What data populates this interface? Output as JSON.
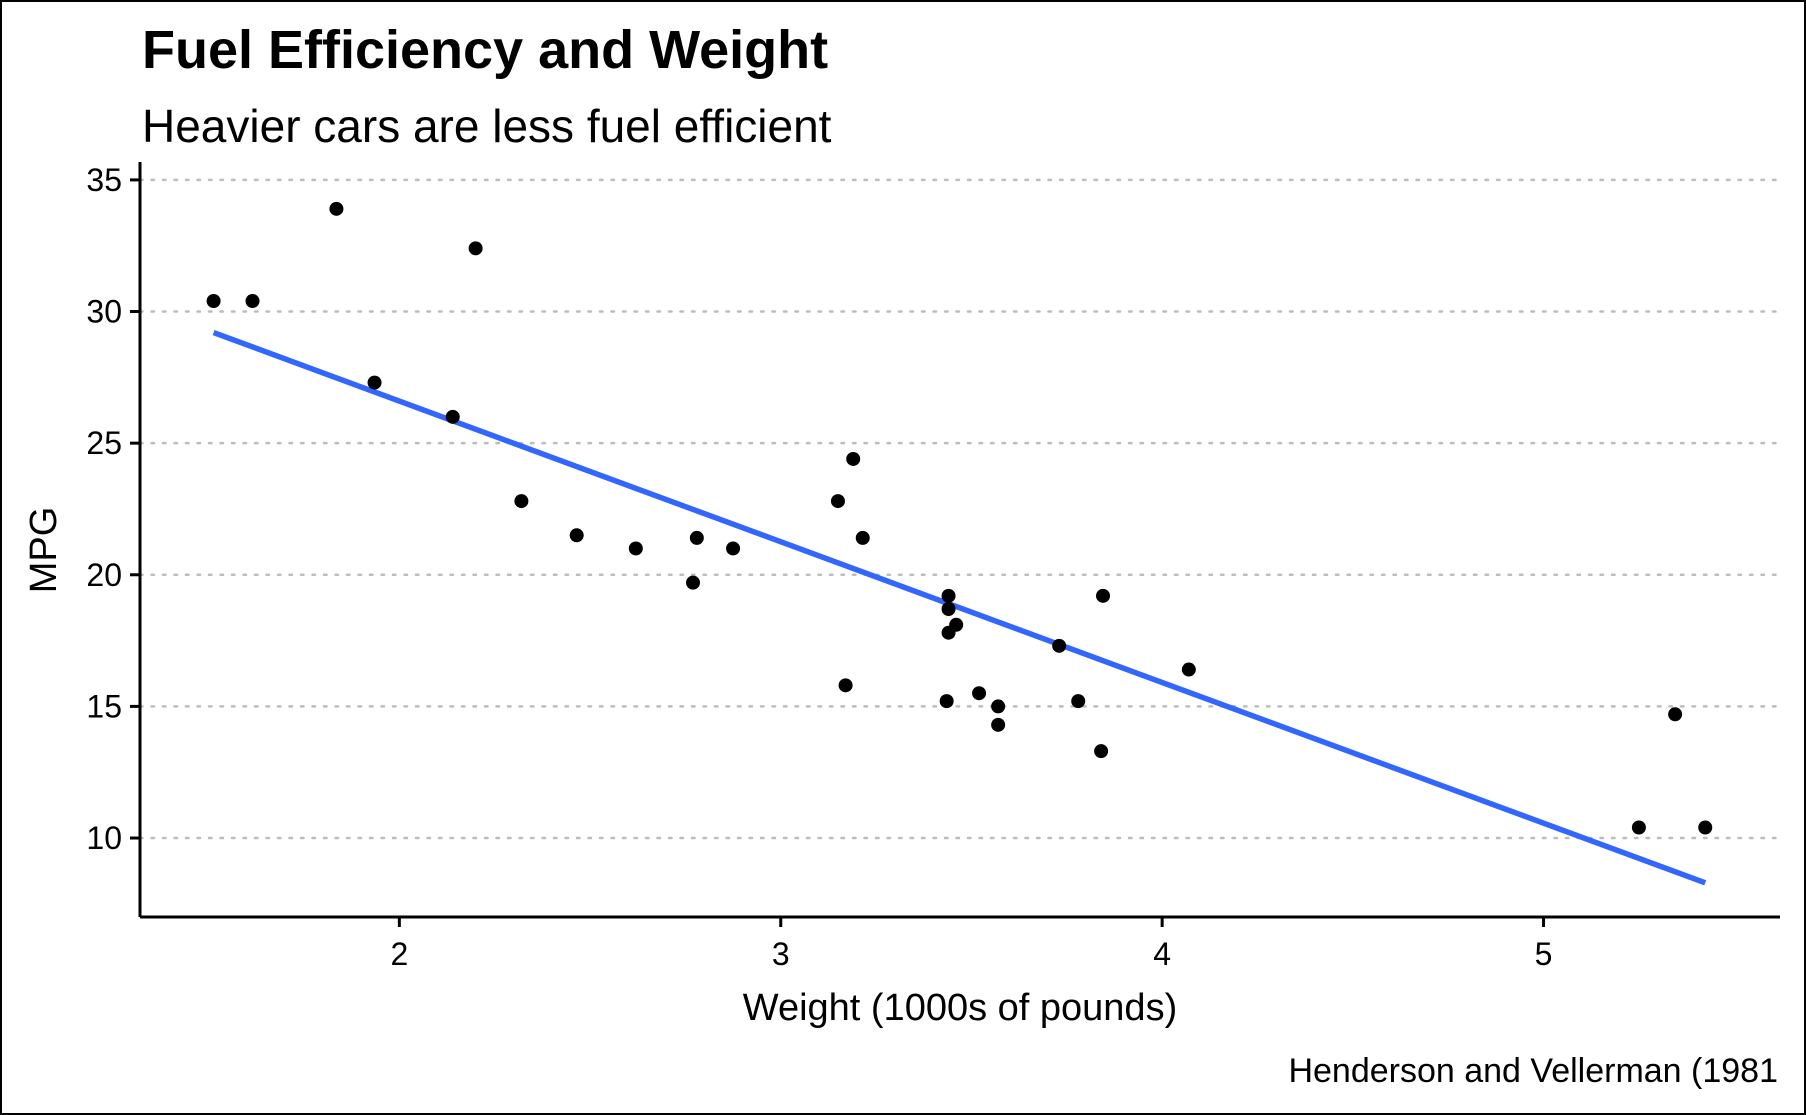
{
  "chart_data": {
    "type": "scatter",
    "title": "Fuel Efficiency and Weight",
    "subtitle": "Heavier cars are less fuel efficient",
    "caption": "Henderson and Vellerman (1981",
    "xlabel": "Weight (1000s of pounds)",
    "ylabel": "MPG",
    "xlim": [
      1.32,
      5.62
    ],
    "ylim": [
      7.0,
      35.3
    ],
    "x_ticks": [
      2,
      3,
      4,
      5
    ],
    "y_ticks": [
      10,
      15,
      20,
      25,
      30,
      35
    ],
    "grid": "horizontal dotted",
    "legend": "none",
    "series": [
      {
        "points": [
          {
            "x": 1.513,
            "y": 30.4
          },
          {
            "x": 1.615,
            "y": 30.4
          },
          {
            "x": 1.835,
            "y": 33.9
          },
          {
            "x": 1.935,
            "y": 27.3
          },
          {
            "x": 2.14,
            "y": 26.0
          },
          {
            "x": 2.2,
            "y": 32.4
          },
          {
            "x": 2.32,
            "y": 22.8
          },
          {
            "x": 2.465,
            "y": 21.5
          },
          {
            "x": 2.62,
            "y": 21.0
          },
          {
            "x": 2.77,
            "y": 19.7
          },
          {
            "x": 2.78,
            "y": 21.4
          },
          {
            "x": 2.875,
            "y": 21.0
          },
          {
            "x": 3.15,
            "y": 22.8
          },
          {
            "x": 3.17,
            "y": 15.8
          },
          {
            "x": 3.19,
            "y": 24.4
          },
          {
            "x": 3.215,
            "y": 21.4
          },
          {
            "x": 3.435,
            "y": 15.2
          },
          {
            "x": 3.44,
            "y": 19.2
          },
          {
            "x": 3.44,
            "y": 18.7
          },
          {
            "x": 3.44,
            "y": 17.8
          },
          {
            "x": 3.46,
            "y": 18.1
          },
          {
            "x": 3.52,
            "y": 15.5
          },
          {
            "x": 3.57,
            "y": 14.3
          },
          {
            "x": 3.57,
            "y": 15.0
          },
          {
            "x": 3.73,
            "y": 17.3
          },
          {
            "x": 3.78,
            "y": 15.2
          },
          {
            "x": 3.84,
            "y": 13.3
          },
          {
            "x": 3.845,
            "y": 19.2
          },
          {
            "x": 4.07,
            "y": 16.4
          },
          {
            "x": 5.25,
            "y": 10.4
          },
          {
            "x": 5.345,
            "y": 14.7
          },
          {
            "x": 5.424,
            "y": 10.4
          }
        ]
      }
    ],
    "fit_line": {
      "type": "linear",
      "color": "#3366FF",
      "x": [
        1.513,
        5.424
      ],
      "y": [
        29.2,
        8.3
      ]
    }
  }
}
